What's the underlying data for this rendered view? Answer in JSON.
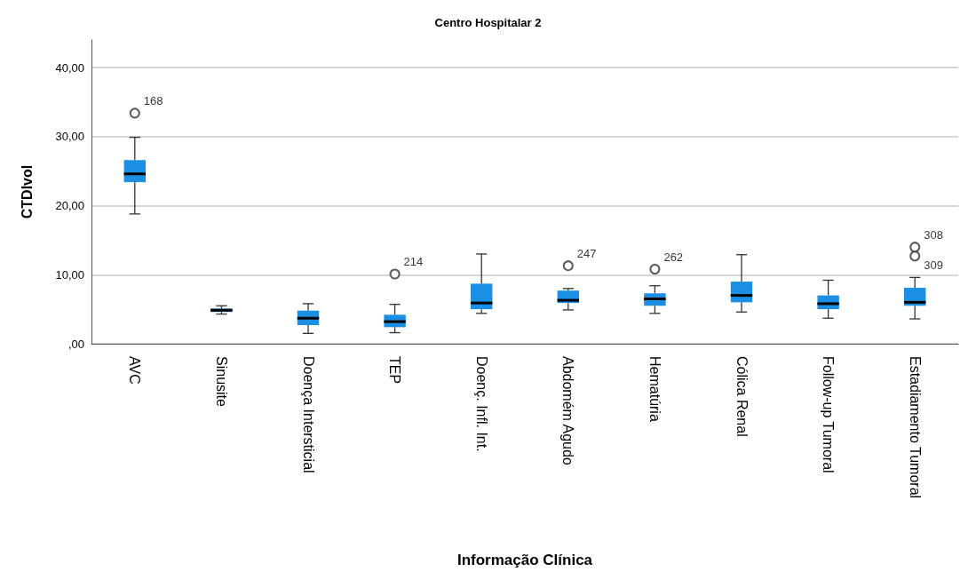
{
  "chart_data": {
    "type": "box",
    "title": "Centro Hospitalar 2",
    "xlabel": "Informação Clínica",
    "ylabel": "CTDIvol",
    "categories": [
      "AVC",
      "Sinusite",
      "Doença Intersticial",
      "TEP",
      "Doenç. Infl. Int.",
      "Abdomém Agudo",
      "Hematúria",
      "Cólica Renal",
      "Follow-up Tumoral",
      "Estadiamento Tumoral"
    ],
    "color": "#1a8fe3",
    "boxes": [
      {
        "low": 18.8,
        "q1": 23.4,
        "median": 24.6,
        "q3": 26.6,
        "high": 29.9,
        "outliers": [
          33.4
        ]
      },
      {
        "low": 4.3,
        "q1": 4.6,
        "median": 4.85,
        "q3": 5.1,
        "high": 5.5
      },
      {
        "low": 1.5,
        "q1": 2.7,
        "median": 3.7,
        "q3": 4.8,
        "high": 5.8
      },
      {
        "low": 1.6,
        "q1": 2.4,
        "median": 3.2,
        "q3": 4.2,
        "high": 5.7,
        "outliers": [
          10.1
        ]
      },
      {
        "low": 4.4,
        "q1": 5.0,
        "median": 5.9,
        "q3": 8.7,
        "high": 13.0
      },
      {
        "low": 4.9,
        "q1": 5.9,
        "median": 6.3,
        "q3": 7.7,
        "high": 8.0,
        "outliers": [
          11.3
        ]
      },
      {
        "low": 4.4,
        "q1": 5.5,
        "median": 6.5,
        "q3": 7.3,
        "high": 8.4,
        "outliers": [
          10.8
        ]
      },
      {
        "low": 4.6,
        "q1": 6.0,
        "median": 7.0,
        "q3": 9.0,
        "high": 12.9
      },
      {
        "low": 3.7,
        "q1": 5.0,
        "median": 5.8,
        "q3": 7.0,
        "high": 9.2
      },
      {
        "low": 3.6,
        "q1": 5.5,
        "median": 6.0,
        "q3": 8.1,
        "high": 9.6,
        "outliers": [
          14.0,
          12.7
        ]
      }
    ],
    "ylim": [
      0,
      44
    ],
    "yticks": [
      {
        "value": 0,
        "label": ",00"
      },
      {
        "value": 10,
        "label": "10,00"
      },
      {
        "value": 20,
        "label": "20,00"
      },
      {
        "value": 30,
        "label": "30,00"
      },
      {
        "value": 40,
        "label": "40,00"
      }
    ],
    "grid": "y",
    "marker": "circle",
    "annotations": [
      "168",
      "214",
      "247",
      "262",
      "308",
      "309"
    ]
  }
}
